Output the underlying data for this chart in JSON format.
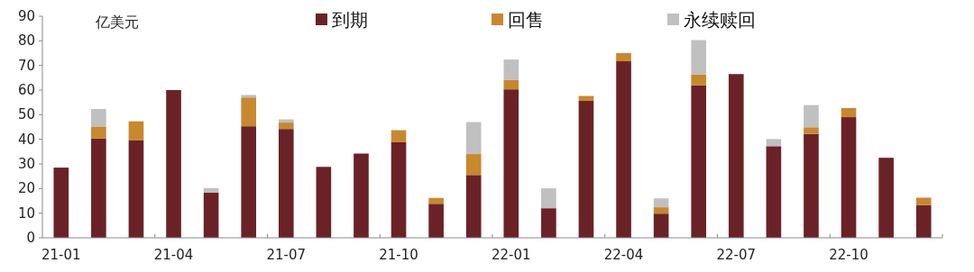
{
  "chart_data": {
    "type": "bar",
    "stacked": true,
    "ylabel": "亿美元",
    "categories": [
      "21-01",
      null,
      null,
      "21-04",
      null,
      null,
      "21-07",
      null,
      null,
      "21-10",
      null,
      null,
      "22-01",
      null,
      null,
      "22-04",
      null,
      null,
      "22-07",
      null,
      null,
      "22-10",
      null,
      null
    ],
    "series": [
      {
        "name": "到期",
        "color": "#6b2226",
        "values": [
          28.5,
          40.3,
          39.7,
          60,
          18.3,
          45.3,
          44.2,
          28.8,
          34.2,
          38.8,
          13.8,
          25.5,
          60.3,
          12,
          55.6,
          71.7,
          9.8,
          61.9,
          66.5,
          37.2,
          42.2,
          49,
          32.5,
          13.3
        ]
      },
      {
        "name": "回售",
        "color": "#c8882e",
        "values": [
          0,
          4.7,
          7.6,
          0,
          0,
          11.7,
          2.6,
          0,
          0,
          4.9,
          2.4,
          8.5,
          3.9,
          0,
          2,
          3.3,
          2.6,
          4.5,
          0,
          0,
          2.7,
          3.7,
          0,
          3
        ]
      },
      {
        "name": "永续赎回",
        "color": "#c0c0c0",
        "values": [
          0,
          7.3,
          0,
          0,
          1.9,
          1,
          1.3,
          0,
          0,
          0,
          0,
          13,
          8.2,
          8.1,
          0,
          0,
          3.6,
          13.9,
          0,
          2.9,
          9,
          0,
          0,
          0
        ]
      }
    ],
    "ylim": [
      0,
      90
    ],
    "yticks": [
      0,
      10,
      20,
      30,
      40,
      50,
      60,
      70,
      80,
      90
    ],
    "legend": "top",
    "grid": false
  }
}
